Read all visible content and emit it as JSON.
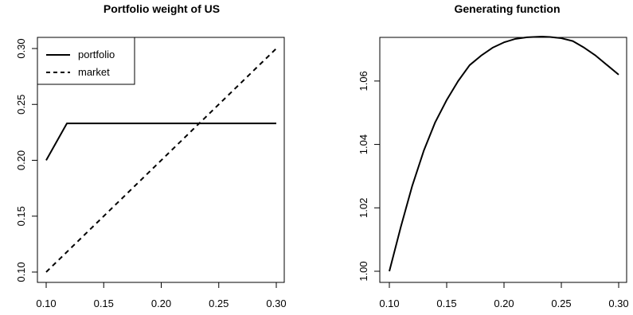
{
  "chart_data": [
    {
      "type": "line",
      "title": "Portfolio weight of US",
      "xlabel": "",
      "ylabel": "",
      "xlim": [
        0.1,
        0.3
      ],
      "ylim": [
        0.1,
        0.3
      ],
      "xticks": [
        "0.10",
        "0.15",
        "0.20",
        "0.25",
        "0.30"
      ],
      "yticks": [
        "0.10",
        "0.15",
        "0.20",
        "0.25",
        "0.30"
      ],
      "legend": {
        "position": "top-left",
        "entries": [
          "portfolio",
          "market"
        ]
      },
      "grid": false,
      "series": [
        {
          "name": "portfolio",
          "style": "solid",
          "color": "#000000",
          "points": [
            [
              0.1,
              0.2
            ],
            [
              0.118,
              0.233
            ],
            [
              0.3,
              0.233
            ]
          ]
        },
        {
          "name": "market",
          "style": "dashed",
          "color": "#000000",
          "points": [
            [
              0.1,
              0.1
            ],
            [
              0.3,
              0.3
            ]
          ]
        }
      ]
    },
    {
      "type": "line",
      "title": "Generating function",
      "xlabel": "",
      "ylabel": "",
      "xlim": [
        0.1,
        0.3
      ],
      "ylim": [
        1.0,
        1.07
      ],
      "xticks": [
        "0.10",
        "0.15",
        "0.20",
        "0.25",
        "0.30"
      ],
      "yticks": [
        "1.00",
        "1.02",
        "1.04",
        "1.06"
      ],
      "grid": false,
      "series": [
        {
          "style": "solid",
          "color": "#000000",
          "points": [
            [
              0.1,
              1.0
            ],
            [
              0.11,
              1.014
            ],
            [
              0.12,
              1.027
            ],
            [
              0.13,
              1.038
            ],
            [
              0.14,
              1.047
            ],
            [
              0.15,
              1.054
            ],
            [
              0.16,
              1.06
            ],
            [
              0.17,
              1.065
            ],
            [
              0.18,
              1.068
            ],
            [
              0.19,
              1.0705
            ],
            [
              0.2,
              1.0722
            ],
            [
              0.21,
              1.0733
            ],
            [
              0.22,
              1.0738
            ],
            [
              0.233,
              1.074
            ],
            [
              0.24,
              1.0739
            ],
            [
              0.25,
              1.0735
            ],
            [
              0.26,
              1.0726
            ],
            [
              0.27,
              1.0705
            ],
            [
              0.28,
              1.068
            ],
            [
              0.29,
              1.065
            ],
            [
              0.3,
              1.062
            ]
          ]
        }
      ]
    }
  ]
}
